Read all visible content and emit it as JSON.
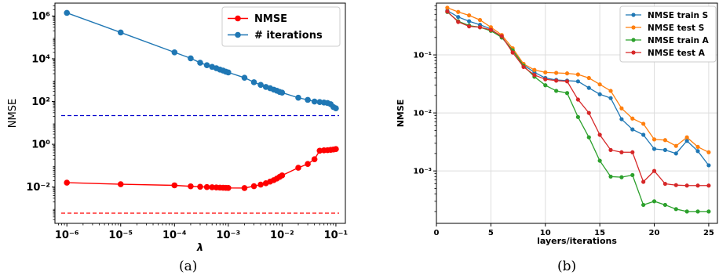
{
  "captions": [
    "(a)",
    "(b)"
  ],
  "chart_data": [
    {
      "type": "line",
      "title": "",
      "xlabel": "λ",
      "ylabel": "NMSE",
      "xscale": "log",
      "yscale": "log",
      "xlim": [
        6e-07,
        0.15
      ],
      "ylim": [
        0.0002,
        4000000.0
      ],
      "x_ticks": [
        1e-06,
        1e-05,
        0.0001,
        0.001,
        0.01,
        0.1
      ],
      "x_tick_labels": [
        "10⁻⁶",
        "10⁻⁵",
        "10⁻⁴",
        "10⁻³",
        "10⁻²",
        "10⁻¹"
      ],
      "y_ticks": [
        0.01,
        1,
        100.0,
        10000.0,
        1000000.0
      ],
      "y_tick_labels": [
        "10⁻²",
        "10⁰",
        "10²",
        "10⁴",
        "10⁶"
      ],
      "grid": false,
      "legend": "top-right",
      "series": [
        {
          "name": "NMSE",
          "color": "#ff0000",
          "x": [
            1e-06,
            1e-05,
            0.0001,
            0.0002,
            0.0003,
            0.0004,
            0.0005,
            0.0006,
            0.0007,
            0.0008,
            0.0009,
            0.001,
            0.002,
            0.003,
            0.004,
            0.005,
            0.006,
            0.007,
            0.008,
            0.009,
            0.01,
            0.02,
            0.03,
            0.04,
            0.05,
            0.06,
            0.07,
            0.08,
            0.09,
            0.1
          ],
          "y": [
            0.016,
            0.0135,
            0.012,
            0.0108,
            0.0103,
            0.01,
            0.0098,
            0.0096,
            0.0094,
            0.0093,
            0.0092,
            0.0091,
            0.009,
            0.011,
            0.013,
            0.015,
            0.018,
            0.021,
            0.025,
            0.03,
            0.035,
            0.08,
            0.12,
            0.2,
            0.5,
            0.52,
            0.53,
            0.55,
            0.57,
            0.6
          ]
        },
        {
          "name": "# iterations",
          "color": "#1f77b4",
          "x": [
            1e-06,
            1e-05,
            0.0001,
            0.0002,
            0.0003,
            0.0004,
            0.0005,
            0.0006,
            0.0007,
            0.0008,
            0.0009,
            0.001,
            0.002,
            0.003,
            0.004,
            0.005,
            0.006,
            0.007,
            0.008,
            0.009,
            0.01,
            0.02,
            0.03,
            0.04,
            0.05,
            0.06,
            0.07,
            0.08,
            0.09,
            0.1
          ],
          "y": [
            1400000,
            170000,
            20000,
            10500,
            6500,
            5000,
            4200,
            3600,
            3100,
            2800,
            2500,
            2300,
            1300,
            800,
            600,
            480,
            420,
            360,
            320,
            280,
            260,
            150,
            120,
            100,
            95,
            90,
            85,
            75,
            55,
            48
          ]
        }
      ],
      "reference_lines": [
        {
          "y": 22,
          "color": "#0000cc",
          "style": "dashed"
        },
        {
          "y": 0.0006,
          "color": "#ff0000",
          "style": "dashed"
        }
      ]
    },
    {
      "type": "line",
      "title": "",
      "xlabel": "layers/iterations",
      "ylabel": "NMSE",
      "xscale": "linear",
      "yscale": "log",
      "xlim": [
        0,
        25.8
      ],
      "ylim": [
        0.000125,
        0.78
      ],
      "x_ticks": [
        0,
        5,
        10,
        15,
        20,
        25
      ],
      "x_tick_labels": [
        "0",
        "5",
        "10",
        "15",
        "20",
        "25"
      ],
      "y_ticks": [
        0.001,
        0.01,
        0.1
      ],
      "y_tick_labels": [
        "10⁻³",
        "10⁻²",
        "10⁻¹"
      ],
      "grid": true,
      "legend": "top-right",
      "categories": [
        1,
        2,
        3,
        4,
        5,
        6,
        7,
        8,
        9,
        10,
        11,
        12,
        13,
        14,
        15,
        16,
        17,
        18,
        19,
        20,
        21,
        22,
        23,
        24,
        25
      ],
      "series": [
        {
          "name": "NMSE train S",
          "color": "#1f77b4",
          "values": [
            0.58,
            0.45,
            0.38,
            0.33,
            0.28,
            0.2,
            0.12,
            0.067,
            0.05,
            0.04,
            0.037,
            0.036,
            0.035,
            0.027,
            0.021,
            0.018,
            0.0078,
            0.0052,
            0.0042,
            0.0024,
            0.0023,
            0.002,
            0.0033,
            0.0022,
            0.00125
          ]
        },
        {
          "name": "NMSE test S",
          "color": "#ff7f0e",
          "values": [
            0.65,
            0.55,
            0.48,
            0.4,
            0.3,
            0.22,
            0.13,
            0.07,
            0.055,
            0.05,
            0.049,
            0.048,
            0.046,
            0.04,
            0.031,
            0.024,
            0.012,
            0.008,
            0.0065,
            0.0035,
            0.0034,
            0.0027,
            0.0038,
            0.0026,
            0.0021
          ]
        },
        {
          "name": "NMSE train A",
          "color": "#2ca02c",
          "values": [
            0.55,
            0.38,
            0.32,
            0.3,
            0.26,
            0.2,
            0.12,
            0.065,
            0.042,
            0.03,
            0.024,
            0.022,
            0.0085,
            0.0038,
            0.0015,
            0.0008,
            0.00078,
            0.00085,
            0.00026,
            0.0003,
            0.00026,
            0.00022,
            0.0002,
            0.0002,
            0.0002
          ]
        },
        {
          "name": "NMSE test A",
          "color": "#d62728",
          "values": [
            0.56,
            0.37,
            0.31,
            0.3,
            0.27,
            0.21,
            0.11,
            0.062,
            0.045,
            0.038,
            0.036,
            0.035,
            0.017,
            0.01,
            0.0042,
            0.0023,
            0.0021,
            0.0021,
            0.00065,
            0.001,
            0.0006,
            0.00057,
            0.00056,
            0.00056,
            0.00056
          ]
        }
      ]
    }
  ]
}
